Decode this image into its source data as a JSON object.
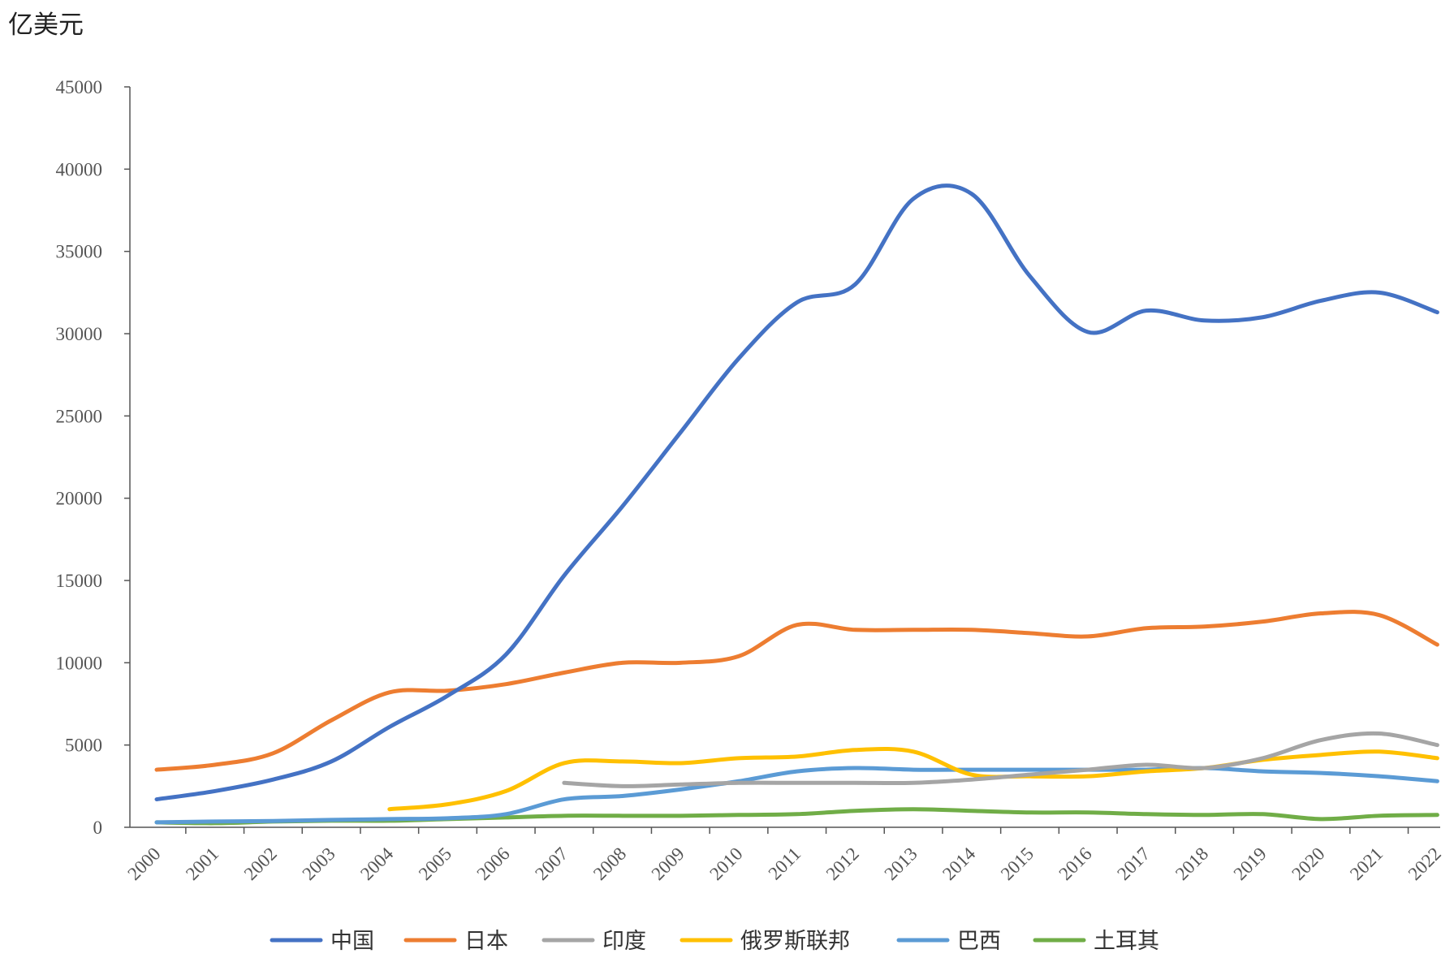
{
  "chart_data": {
    "type": "line",
    "title": "",
    "xlabel": "",
    "ylabel": "亿美元",
    "ylim": [
      0,
      45000
    ],
    "yticks": [
      0,
      5000,
      10000,
      15000,
      20000,
      25000,
      30000,
      35000,
      40000,
      45000
    ],
    "categories": [
      "2000",
      "2001",
      "2002",
      "2003",
      "2004",
      "2005",
      "2006",
      "2007",
      "2008",
      "2009",
      "2010",
      "2011",
      "2012",
      "2013",
      "2014",
      "2015",
      "2016",
      "2017",
      "2018",
      "2019",
      "2020",
      "2021",
      "2022"
    ],
    "grid": false,
    "legend_position": "bottom",
    "series": [
      {
        "name": "中国",
        "color": "#4472c4",
        "values": [
          1700,
          2200,
          2900,
          4000,
          6100,
          8000,
          10500,
          15300,
          19500,
          24000,
          28500,
          31900,
          33000,
          38200,
          38500,
          33500,
          30100,
          31400,
          30800,
          31000,
          32000,
          32500,
          31300
        ]
      },
      {
        "name": "日本",
        "color": "#ed7d31",
        "values": [
          3500,
          3800,
          4500,
          6500,
          8200,
          8300,
          8700,
          9400,
          10000,
          10000,
          10400,
          12300,
          12000,
          12000,
          12000,
          11800,
          11600,
          12100,
          12200,
          12500,
          13000,
          12900,
          11100
        ]
      },
      {
        "name": "印度",
        "color": "#a5a5a5",
        "values": [
          null,
          null,
          null,
          null,
          null,
          null,
          null,
          2700,
          2500,
          2600,
          2700,
          2700,
          2700,
          2700,
          2900,
          3200,
          3500,
          3800,
          3600,
          4200,
          5300,
          5700,
          5000
        ]
      },
      {
        "name": "俄罗斯联邦",
        "color": "#ffc000",
        "values": [
          null,
          null,
          null,
          null,
          1100,
          1400,
          2200,
          3900,
          4000,
          3900,
          4200,
          4300,
          4700,
          4600,
          3200,
          3100,
          3100,
          3400,
          3600,
          4100,
          4400,
          4600,
          4200
        ]
      },
      {
        "name": "巴西",
        "color": "#5b9bd5",
        "values": [
          300,
          350,
          380,
          450,
          500,
          550,
          800,
          1700,
          1900,
          2300,
          2800,
          3400,
          3600,
          3500,
          3500,
          3500,
          3500,
          3500,
          3600,
          3400,
          3300,
          3100,
          2800
        ]
      },
      {
        "name": "土耳其",
        "color": "#70ad47",
        "values": [
          300,
          250,
          350,
          400,
          400,
          500,
          600,
          700,
          700,
          700,
          750,
          800,
          1000,
          1100,
          1000,
          900,
          900,
          800,
          750,
          800,
          500,
          700,
          750
        ]
      }
    ]
  }
}
